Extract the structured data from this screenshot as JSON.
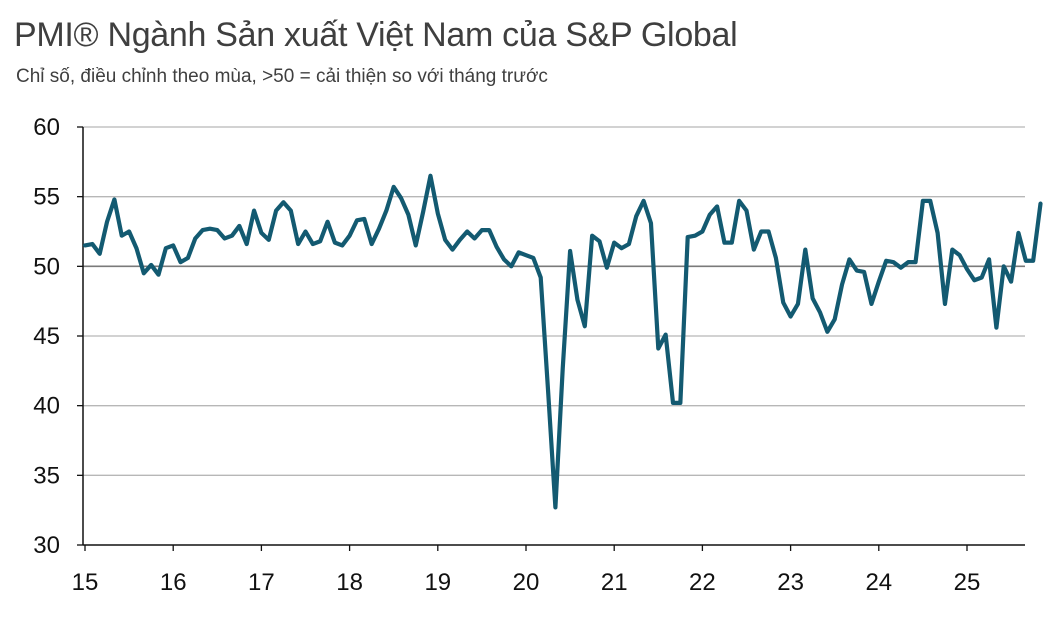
{
  "title": "PMI® Ngành Sản xuất Việt Nam của S&P Global",
  "subtitle": "Chỉ số, điều chỉnh theo mùa, >50 = cải thiện so với tháng trước",
  "colors": {
    "line": "#135a71",
    "grid": "#b7b7b7",
    "axis": "#111111",
    "text": "#3f3f3f"
  },
  "chart_data": {
    "type": "line",
    "title": "PMI® Ngành Sản xuất Việt Nam của S&P Global",
    "ylabel": "Chỉ số, điều chỉnh theo mùa, >50 = cải thiện so với tháng trước",
    "xlabel": "",
    "ylim": [
      30,
      60
    ],
    "yticks": [
      "30",
      "35",
      "40",
      "45",
      "50",
      "55",
      "60"
    ],
    "xtick_labels": [
      "15",
      "16",
      "17",
      "18",
      "19",
      "20",
      "21",
      "22",
      "23",
      "24",
      "25"
    ],
    "x_start": "2015-01",
    "legend": "none",
    "grid": true,
    "series": [
      {
        "name": "PMI",
        "values": [
          51.5,
          51.6,
          50.9,
          53.2,
          54.8,
          52.2,
          52.5,
          51.3,
          49.5,
          50.1,
          49.4,
          51.3,
          51.5,
          50.3,
          50.6,
          52.0,
          52.6,
          52.7,
          52.6,
          52.0,
          52.2,
          52.9,
          51.6,
          54.0,
          52.4,
          51.9,
          54.0,
          54.6,
          54.0,
          51.6,
          52.5,
          51.6,
          51.8,
          53.2,
          51.7,
          51.5,
          52.2,
          53.3,
          53.4,
          51.6,
          52.7,
          54.0,
          55.7,
          54.9,
          53.7,
          51.5,
          53.9,
          56.5,
          53.8,
          51.9,
          51.2,
          51.9,
          52.5,
          52.0,
          52.6,
          52.6,
          51.4,
          50.5,
          50.0,
          51.0,
          50.8,
          50.6,
          49.2,
          41.1,
          32.7,
          42.7,
          51.1,
          47.6,
          45.7,
          52.2,
          51.8,
          49.9,
          51.7,
          51.3,
          51.6,
          53.6,
          54.7,
          53.1,
          44.1,
          45.1,
          40.2,
          40.2,
          52.1,
          52.2,
          52.5,
          53.7,
          54.3,
          51.7,
          51.7,
          54.7,
          54.0,
          51.2,
          52.5,
          52.5,
          50.6,
          47.4,
          46.4,
          47.3,
          51.2,
          47.7,
          46.7,
          45.3,
          46.2,
          48.7,
          50.5,
          49.7,
          49.6,
          47.3,
          48.9,
          50.4,
          50.3,
          49.9,
          50.3,
          50.3,
          54.7,
          54.7,
          52.4,
          47.3,
          51.2,
          50.8,
          49.8,
          49.0,
          49.2,
          50.5,
          45.6,
          50.0,
          48.9,
          52.4,
          50.4,
          50.4,
          54.5
        ]
      }
    ]
  }
}
